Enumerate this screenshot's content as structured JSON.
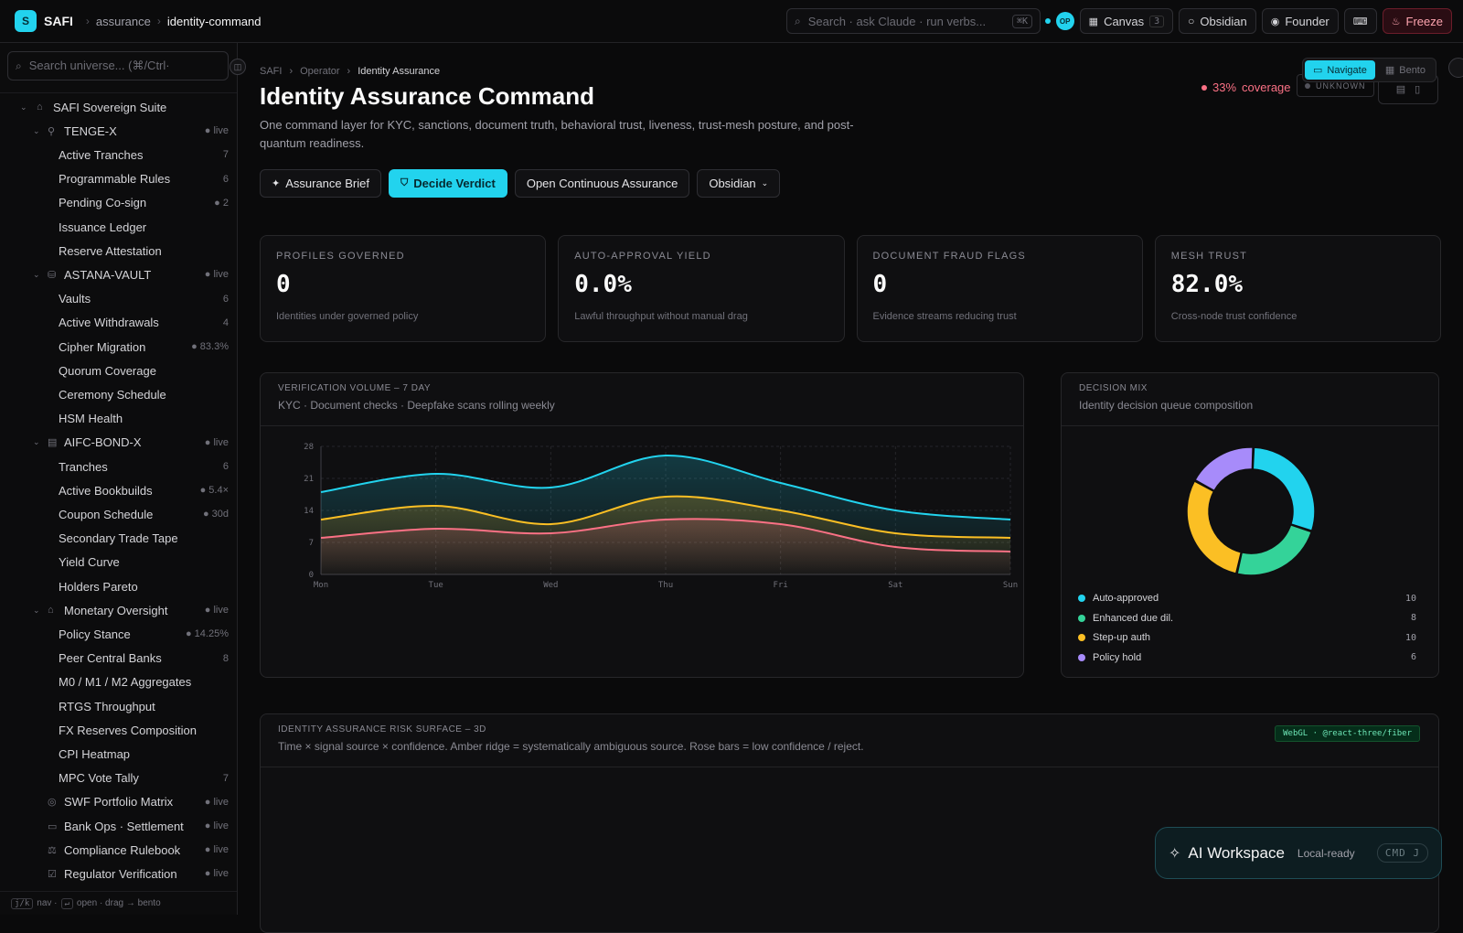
{
  "topbar": {
    "logo_letter": "S",
    "brand": "SAFI",
    "crumbs": [
      "assurance",
      "identity-command"
    ],
    "search_placeholder": "Search · ask Claude · run verbs...",
    "search_kbd": "⌘K",
    "avatar": "OP",
    "canvas_label": "Canvas",
    "canvas_count": "3",
    "obsidian_label": "Obsidian",
    "founder_label": "Founder",
    "freeze_label": "Freeze"
  },
  "sidebar": {
    "search_placeholder": "Search universe... (⌘/Ctrl·",
    "root": "SAFI Sovereign Suite",
    "groups": [
      {
        "label": "TENGE-X",
        "badge": "● live",
        "items": [
          {
            "label": "Active Tranches",
            "badge": "7",
            "tone": "muted"
          },
          {
            "label": "Programmable Rules",
            "badge": "6",
            "tone": "muted"
          },
          {
            "label": "Pending Co-sign",
            "badge": "● 2",
            "tone": "amber"
          },
          {
            "label": "Issuance Ledger",
            "badge": "",
            "tone": "muted"
          },
          {
            "label": "Reserve Attestation",
            "badge": "",
            "tone": "muted"
          }
        ]
      },
      {
        "label": "ASTANA-VAULT",
        "badge": "● live",
        "items": [
          {
            "label": "Vaults",
            "badge": "6",
            "tone": "muted"
          },
          {
            "label": "Active Withdrawals",
            "badge": "4",
            "tone": "muted"
          },
          {
            "label": "Cipher Migration",
            "badge": "● 83.3%",
            "tone": "cyan"
          },
          {
            "label": "Quorum Coverage",
            "badge": "",
            "tone": "muted"
          },
          {
            "label": "Ceremony Schedule",
            "badge": "",
            "tone": "muted"
          },
          {
            "label": "HSM Health",
            "badge": "",
            "tone": "muted"
          }
        ]
      },
      {
        "label": "AIFC-BOND-X",
        "badge": "● live",
        "items": [
          {
            "label": "Tranches",
            "badge": "6",
            "tone": "muted"
          },
          {
            "label": "Active Bookbuilds",
            "badge": "● 5.4×",
            "tone": "cyan"
          },
          {
            "label": "Coupon Schedule",
            "badge": "● 30d",
            "tone": "amber"
          },
          {
            "label": "Secondary Trade Tape",
            "badge": "",
            "tone": "muted"
          },
          {
            "label": "Yield Curve",
            "badge": "",
            "tone": "muted"
          },
          {
            "label": "Holders Pareto",
            "badge": "",
            "tone": "muted"
          }
        ]
      },
      {
        "label": "Monetary Oversight",
        "badge": "● live",
        "items": [
          {
            "label": "Policy Stance",
            "badge": "● 14.25%",
            "tone": "amber"
          },
          {
            "label": "Peer Central Banks",
            "badge": "8",
            "tone": "muted"
          },
          {
            "label": "M0 / M1 / M2 Aggregates",
            "badge": "",
            "tone": "muted"
          },
          {
            "label": "RTGS Throughput",
            "badge": "",
            "tone": "muted"
          },
          {
            "label": "FX Reserves Composition",
            "badge": "",
            "tone": "muted"
          },
          {
            "label": "CPI Heatmap",
            "badge": "",
            "tone": "muted"
          },
          {
            "label": "MPC Vote Tally",
            "badge": "7",
            "tone": "muted"
          }
        ]
      }
    ],
    "bottom_items": [
      {
        "label": "SWF Portfolio Matrix",
        "badge": "● live"
      },
      {
        "label": "Bank Ops · Settlement",
        "badge": "● live"
      },
      {
        "label": "Compliance Rulebook",
        "badge": "● live"
      },
      {
        "label": "Regulator Verification",
        "badge": "● live"
      }
    ],
    "footer": {
      "k1": "j/k",
      "t1": "nav ·",
      "k2": "↵",
      "t2": "open · drag → bento"
    }
  },
  "main": {
    "breadcrumb": [
      "SAFI",
      "Operator",
      "Identity Assurance"
    ],
    "title": "Identity Assurance Command",
    "description": "One command layer for KYC, sanctions, document truth, behavioral trust, liveness, trust-mesh posture, and post-quantum readiness.",
    "actions": {
      "brief": "Assurance Brief",
      "verdict": "Decide Verdict",
      "continuous": "Open Continuous Assurance",
      "obsidian": "Obsidian"
    },
    "coverage_value": "33%",
    "coverage_label": "coverage",
    "unknown_label": "UNKNOWN",
    "view_switch": {
      "navigate": "Navigate",
      "bento": "Bento"
    }
  },
  "kpis": [
    {
      "label": "Profiles Governed",
      "value": "0",
      "sub": "Identities under governed policy"
    },
    {
      "label": "Auto-Approval Yield",
      "value": "0.0%",
      "sub": "Lawful throughput without manual drag"
    },
    {
      "label": "Document Fraud Flags",
      "value": "0",
      "sub": "Evidence streams reducing trust"
    },
    {
      "label": "Mesh Trust",
      "value": "82.0%",
      "sub": "Cross-node trust confidence"
    }
  ],
  "volume_panel": {
    "title": "Verification Volume – 7 Day",
    "subtitle": "KYC · Document checks · Deepfake scans rolling weekly"
  },
  "mix_panel": {
    "title": "Decision Mix",
    "subtitle": "Identity decision queue composition"
  },
  "risk_panel": {
    "title": "Identity Assurance Risk Surface – 3D",
    "subtitle": "Time × signal source × confidence. Amber ridge = systematically ambiguous source. Rose bars = low confidence / reject.",
    "tag": "WebGL · @react-three/fiber"
  },
  "ai_workspace": {
    "title": "AI Workspace",
    "status": "Local-ready",
    "kbd": "CMD J"
  },
  "chart_data": [
    {
      "type": "area",
      "categories": [
        "Mon",
        "Tue",
        "Wed",
        "Thu",
        "Fri",
        "Sat",
        "Sun"
      ],
      "ylim": [
        0,
        28
      ],
      "yticks": [
        0,
        7,
        14,
        21,
        28
      ],
      "grid": true,
      "series": [
        {
          "color": "#22d3ee",
          "values": [
            18,
            22,
            19,
            26,
            20,
            14,
            12
          ]
        },
        {
          "color": "#fbbf24",
          "values": [
            12,
            15,
            11,
            17,
            14,
            9,
            8
          ]
        },
        {
          "color": "#fb7185",
          "values": [
            8,
            10,
            9,
            12,
            11,
            6,
            5
          ]
        }
      ]
    },
    {
      "type": "pie",
      "donut": true,
      "labels": [
        "Auto-approved",
        "Enhanced due dil.",
        "Step-up auth",
        "Policy hold"
      ],
      "values": [
        10,
        8,
        10,
        6
      ],
      "colors": [
        "#22d3ee",
        "#34d399",
        "#fbbf24",
        "#a78bfa"
      ]
    }
  ]
}
